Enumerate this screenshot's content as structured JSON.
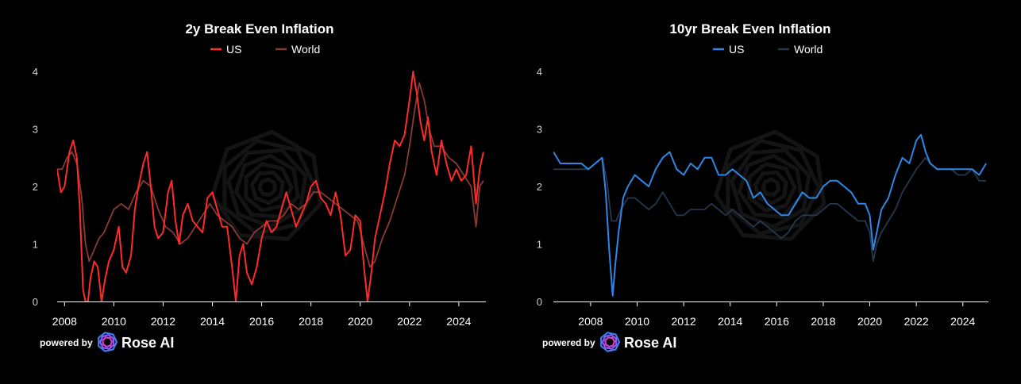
{
  "chart_data": [
    {
      "type": "line",
      "title": "2y Break Even Inflation",
      "xlim": [
        2007.7,
        2025.1
      ],
      "ylim": [
        0,
        4
      ],
      "yticks": [
        0,
        1,
        2,
        3,
        4
      ],
      "xticks": [
        2008,
        2010,
        2012,
        2014,
        2016,
        2018,
        2020,
        2022,
        2024
      ],
      "legend": "top-center",
      "grid": false,
      "series": [
        {
          "name": "US",
          "color": "#ff2a2a",
          "x": [
            2007.7,
            2007.85,
            2008.0,
            2008.2,
            2008.35,
            2008.5,
            2008.62,
            2008.75,
            2008.85,
            2008.95,
            2009.05,
            2009.2,
            2009.35,
            2009.5,
            2009.65,
            2009.8,
            2010.0,
            2010.2,
            2010.35,
            2010.5,
            2010.7,
            2010.85,
            2011.0,
            2011.2,
            2011.35,
            2011.5,
            2011.65,
            2011.8,
            2012.0,
            2012.2,
            2012.35,
            2012.5,
            2012.65,
            2012.8,
            2013.0,
            2013.2,
            2013.4,
            2013.6,
            2013.8,
            2014.0,
            2014.2,
            2014.4,
            2014.6,
            2014.8,
            2014.95,
            2015.1,
            2015.25,
            2015.4,
            2015.6,
            2015.8,
            2016.0,
            2016.2,
            2016.4,
            2016.6,
            2016.8,
            2017.0,
            2017.2,
            2017.4,
            2017.6,
            2017.8,
            2018.0,
            2018.2,
            2018.4,
            2018.6,
            2018.8,
            2019.0,
            2019.2,
            2019.4,
            2019.6,
            2019.8,
            2020.0,
            2020.15,
            2020.3,
            2020.45,
            2020.6,
            2020.8,
            2021.0,
            2021.2,
            2021.4,
            2021.6,
            2021.8,
            2022.0,
            2022.15,
            2022.3,
            2022.45,
            2022.6,
            2022.75,
            2022.9,
            2023.1,
            2023.3,
            2023.5,
            2023.7,
            2023.9,
            2024.1,
            2024.3,
            2024.5,
            2024.7,
            2024.85,
            2025.0
          ],
          "y": [
            2.3,
            1.9,
            2.0,
            2.6,
            2.8,
            2.5,
            1.6,
            0.2,
            0.0,
            0.0,
            0.4,
            0.7,
            0.6,
            0.0,
            0.4,
            0.7,
            0.9,
            1.3,
            0.6,
            0.5,
            0.8,
            1.6,
            2.0,
            2.4,
            2.6,
            2.0,
            1.3,
            1.1,
            1.2,
            1.9,
            2.1,
            1.4,
            1.0,
            1.5,
            1.7,
            1.4,
            1.3,
            1.2,
            1.8,
            1.9,
            1.6,
            1.3,
            1.3,
            0.6,
            0.0,
            0.8,
            1.0,
            0.5,
            0.3,
            0.6,
            1.1,
            1.4,
            1.2,
            1.3,
            1.6,
            1.9,
            1.6,
            1.3,
            1.5,
            1.7,
            2.0,
            2.1,
            1.8,
            1.7,
            1.5,
            1.9,
            1.5,
            0.8,
            0.9,
            1.5,
            1.4,
            0.6,
            0.0,
            0.5,
            1.1,
            1.5,
            1.9,
            2.4,
            2.8,
            2.7,
            2.9,
            3.5,
            4.0,
            3.6,
            3.1,
            2.8,
            3.2,
            2.6,
            2.2,
            2.8,
            2.4,
            2.1,
            2.3,
            2.1,
            2.2,
            2.7,
            1.7,
            2.3,
            2.6
          ]
        },
        {
          "name": "World",
          "color": "#8a3a36",
          "x": [
            2007.7,
            2007.9,
            2008.1,
            2008.3,
            2008.5,
            2008.7,
            2008.85,
            2009.0,
            2009.2,
            2009.4,
            2009.6,
            2009.8,
            2010.0,
            2010.3,
            2010.6,
            2010.9,
            2011.2,
            2011.5,
            2011.8,
            2012.1,
            2012.4,
            2012.7,
            2013.0,
            2013.3,
            2013.6,
            2013.9,
            2014.2,
            2014.5,
            2014.8,
            2015.1,
            2015.4,
            2015.7,
            2016.0,
            2016.3,
            2016.6,
            2016.9,
            2017.2,
            2017.5,
            2017.8,
            2018.1,
            2018.4,
            2018.7,
            2019.0,
            2019.3,
            2019.6,
            2019.9,
            2020.2,
            2020.4,
            2020.6,
            2020.9,
            2021.2,
            2021.5,
            2021.8,
            2022.0,
            2022.2,
            2022.4,
            2022.6,
            2022.8,
            2023.0,
            2023.3,
            2023.6,
            2023.9,
            2024.2,
            2024.5,
            2024.7,
            2024.85,
            2025.0
          ],
          "y": [
            2.3,
            2.3,
            2.5,
            2.6,
            2.4,
            1.8,
            1.0,
            0.7,
            0.9,
            1.1,
            1.2,
            1.4,
            1.6,
            1.7,
            1.6,
            1.9,
            2.1,
            2.0,
            1.6,
            1.3,
            1.2,
            1.0,
            1.1,
            1.3,
            1.5,
            1.7,
            1.5,
            1.4,
            1.3,
            1.1,
            1.0,
            1.2,
            1.3,
            1.4,
            1.4,
            1.5,
            1.7,
            1.6,
            1.7,
            1.9,
            1.9,
            1.8,
            1.7,
            1.6,
            1.5,
            1.4,
            0.9,
            0.6,
            0.7,
            1.1,
            1.4,
            1.8,
            2.2,
            2.7,
            3.3,
            3.8,
            3.5,
            3.0,
            2.7,
            2.7,
            2.5,
            2.4,
            2.2,
            2.0,
            1.3,
            2.0,
            2.1
          ]
        }
      ]
    },
    {
      "type": "line",
      "title": "10yr Break Even Inflation",
      "xlim": [
        2006.4,
        2025.1
      ],
      "ylim": [
        0,
        4
      ],
      "yticks": [
        0,
        1,
        2,
        3,
        4
      ],
      "xticks": [
        2008,
        2010,
        2012,
        2014,
        2016,
        2018,
        2020,
        2022,
        2024
      ],
      "legend": "top-center",
      "grid": false,
      "series": [
        {
          "name": "US",
          "color": "#2f86e6",
          "x": [
            2006.4,
            2006.7,
            2007.0,
            2007.3,
            2007.6,
            2007.9,
            2008.2,
            2008.5,
            2008.65,
            2008.8,
            2008.95,
            2009.05,
            2009.2,
            2009.4,
            2009.6,
            2009.9,
            2010.2,
            2010.5,
            2010.8,
            2011.1,
            2011.4,
            2011.7,
            2012.0,
            2012.3,
            2012.6,
            2012.9,
            2013.2,
            2013.5,
            2013.8,
            2014.1,
            2014.4,
            2014.7,
            2015.0,
            2015.3,
            2015.6,
            2015.9,
            2016.2,
            2016.5,
            2016.8,
            2017.1,
            2017.4,
            2017.7,
            2018.0,
            2018.3,
            2018.6,
            2018.9,
            2019.2,
            2019.5,
            2019.8,
            2020.0,
            2020.15,
            2020.3,
            2020.5,
            2020.8,
            2021.1,
            2021.4,
            2021.7,
            2022.0,
            2022.2,
            2022.4,
            2022.6,
            2022.9,
            2023.2,
            2023.5,
            2023.8,
            2024.1,
            2024.4,
            2024.7,
            2025.0
          ],
          "y": [
            2.6,
            2.4,
            2.4,
            2.4,
            2.4,
            2.3,
            2.4,
            2.5,
            1.9,
            0.9,
            0.1,
            0.6,
            1.2,
            1.8,
            2.0,
            2.2,
            2.1,
            2.0,
            2.3,
            2.5,
            2.6,
            2.3,
            2.2,
            2.4,
            2.3,
            2.5,
            2.5,
            2.2,
            2.2,
            2.3,
            2.2,
            2.1,
            1.8,
            1.9,
            1.7,
            1.6,
            1.5,
            1.5,
            1.7,
            1.9,
            1.8,
            1.8,
            2.0,
            2.1,
            2.1,
            2.0,
            1.9,
            1.7,
            1.7,
            1.5,
            0.9,
            1.2,
            1.6,
            1.8,
            2.2,
            2.5,
            2.4,
            2.8,
            2.9,
            2.6,
            2.4,
            2.3,
            2.3,
            2.3,
            2.3,
            2.3,
            2.3,
            2.2,
            2.4
          ]
        },
        {
          "name": "World",
          "color": "#26364d",
          "x": [
            2006.4,
            2006.7,
            2007.0,
            2007.3,
            2007.6,
            2007.9,
            2008.2,
            2008.5,
            2008.7,
            2008.9,
            2009.1,
            2009.3,
            2009.6,
            2009.9,
            2010.2,
            2010.5,
            2010.8,
            2011.1,
            2011.4,
            2011.7,
            2012.0,
            2012.3,
            2012.6,
            2012.9,
            2013.2,
            2013.5,
            2013.8,
            2014.1,
            2014.4,
            2014.7,
            2015.0,
            2015.3,
            2015.6,
            2015.9,
            2016.2,
            2016.5,
            2016.8,
            2017.1,
            2017.4,
            2017.7,
            2018.0,
            2018.3,
            2018.6,
            2018.9,
            2019.2,
            2019.5,
            2019.8,
            2020.0,
            2020.15,
            2020.3,
            2020.5,
            2020.8,
            2021.1,
            2021.4,
            2021.7,
            2022.0,
            2022.2,
            2022.4,
            2022.6,
            2022.9,
            2023.2,
            2023.5,
            2023.8,
            2024.1,
            2024.4,
            2024.7,
            2025.0
          ],
          "y": [
            2.3,
            2.3,
            2.3,
            2.3,
            2.3,
            2.3,
            2.4,
            2.5,
            2.1,
            1.4,
            1.4,
            1.6,
            1.8,
            1.8,
            1.7,
            1.6,
            1.7,
            1.9,
            1.7,
            1.5,
            1.5,
            1.6,
            1.6,
            1.6,
            1.7,
            1.6,
            1.5,
            1.6,
            1.5,
            1.4,
            1.3,
            1.4,
            1.3,
            1.2,
            1.1,
            1.2,
            1.4,
            1.5,
            1.5,
            1.5,
            1.6,
            1.7,
            1.7,
            1.6,
            1.5,
            1.4,
            1.4,
            1.2,
            0.7,
            1.0,
            1.2,
            1.4,
            1.6,
            1.9,
            2.1,
            2.3,
            2.4,
            2.5,
            2.4,
            2.3,
            2.3,
            2.3,
            2.2,
            2.2,
            2.3,
            2.1,
            2.1
          ]
        }
      ]
    }
  ],
  "brand": {
    "prefix": "powered by",
    "name": "Rose AI",
    "logo_colors": [
      "#3f7cf5",
      "#8a5cf0",
      "#d43fd0"
    ]
  }
}
